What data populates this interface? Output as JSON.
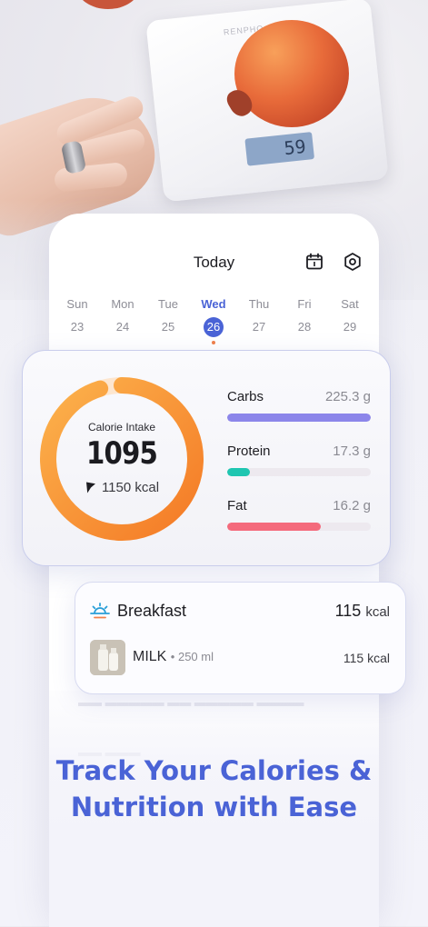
{
  "scale": {
    "brand": "RENPHO",
    "reading": "59"
  },
  "header": {
    "title": "Today",
    "calendar_icon": "calendar-icon",
    "settings_icon": "settings-icon"
  },
  "week": [
    {
      "name": "Sun",
      "num": "23"
    },
    {
      "name": "Mon",
      "num": "24"
    },
    {
      "name": "Tue",
      "num": "25"
    },
    {
      "name": "Wed",
      "num": "26",
      "active": true
    },
    {
      "name": "Thu",
      "num": "27"
    },
    {
      "name": "Fri",
      "num": "28"
    },
    {
      "name": "Sat",
      "num": "29"
    }
  ],
  "calories": {
    "label": "Calorie Intake",
    "value": "1095",
    "goal": "1150 kcal",
    "progress": 0.952,
    "gradient": [
      "#f47a26",
      "#fcb24c"
    ]
  },
  "macros": [
    {
      "name": "Carbs",
      "value": "225.3 g",
      "progress": 1.0,
      "color": "#8c86ea"
    },
    {
      "name": "Protein",
      "value": "17.3 g",
      "progress": 0.16,
      "color": "#1fc6b1"
    },
    {
      "name": "Fat",
      "value": "16.2 g",
      "progress": 0.65,
      "color": "#f46a7c"
    }
  ],
  "meal": {
    "icon": "sunrise-icon",
    "title": "Breakfast",
    "kcal": "115",
    "kcal_unit": "kcal",
    "items": [
      {
        "name": "MILK",
        "portion": "• 250 ml",
        "kcal": "115 kcal",
        "thumb": "milk-bottle-photo"
      }
    ]
  },
  "headline": {
    "line1": "Track Your Calories &",
    "line2": "Nutrition with Ease"
  },
  "colors": {
    "accent": "#4a63d6",
    "today_dot": "#f0804a"
  }
}
